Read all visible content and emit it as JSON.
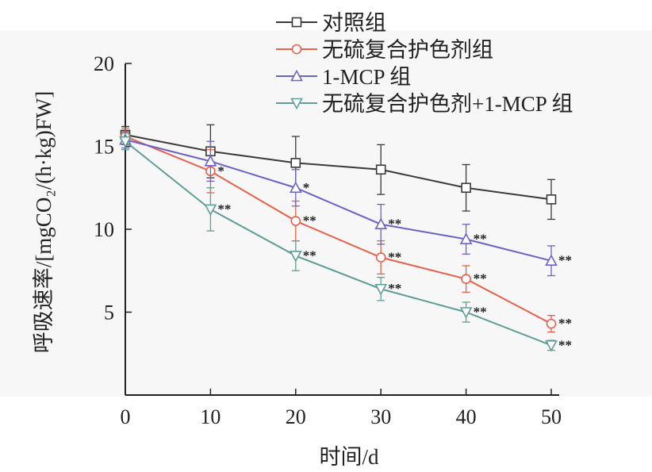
{
  "chart_data": {
    "type": "line",
    "x": [
      0,
      10,
      20,
      30,
      40,
      50
    ],
    "xlabel": "时间/d",
    "ylabel": "呼吸速率/[mgCO₂/(h·kg)FW]",
    "xlim": [
      0,
      50
    ],
    "ylim": [
      0,
      20
    ],
    "xticks": [
      "0",
      "10",
      "20",
      "30",
      "40",
      "50"
    ],
    "yticks": [
      "5",
      "10",
      "15",
      "20"
    ],
    "grid": false,
    "legend_position": "top-right",
    "background": "#f7f7f7",
    "series": [
      {
        "name": "对照组",
        "color": "#3a3a3a",
        "marker": "square",
        "values": [
          15.7,
          14.7,
          14.0,
          13.6,
          12.5,
          11.8
        ],
        "errors": [
          0.5,
          1.6,
          1.6,
          1.5,
          1.4,
          1.2
        ],
        "significance": [
          "",
          "",
          "",
          "",
          "",
          ""
        ]
      },
      {
        "name": "无硫复合护色剂组",
        "color": "#e8604a",
        "marker": "circle",
        "values": [
          15.6,
          13.5,
          10.5,
          8.3,
          7.0,
          4.3
        ],
        "errors": [
          0.5,
          1.3,
          1.2,
          1.0,
          0.8,
          0.5
        ],
        "significance": [
          "",
          "*",
          "**",
          "**",
          "**",
          "**"
        ]
      },
      {
        "name": "1-MCP 组",
        "color": "#6a64c8",
        "marker": "triangle-up",
        "values": [
          15.4,
          14.1,
          12.5,
          10.3,
          9.4,
          8.1
        ],
        "errors": [
          0.5,
          1.2,
          1.1,
          1.2,
          0.9,
          0.9
        ],
        "significance": [
          "",
          "",
          "*",
          "**",
          "**",
          "**"
        ]
      },
      {
        "name": "无硫复合护色剂+1-MCP 组",
        "color": "#5f9e96",
        "marker": "triangle-down",
        "values": [
          15.3,
          11.2,
          8.4,
          6.4,
          5.0,
          3.0
        ],
        "errors": [
          0.5,
          1.3,
          0.9,
          0.7,
          0.6,
          0.3
        ],
        "significance": [
          "",
          "**",
          "**",
          "**",
          "**",
          "**"
        ]
      }
    ]
  }
}
